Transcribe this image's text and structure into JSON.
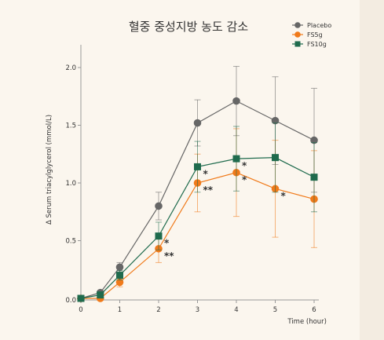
{
  "chart_data": {
    "type": "line",
    "title": "혈중 중성지방 농도 감소",
    "xlabel": "Time (hour)",
    "ylabel": "Δ Serum triacylglycerol (mmol/L)",
    "x": [
      0,
      0.5,
      1,
      2,
      3,
      4,
      5,
      6
    ],
    "x_ticks": [
      "0",
      "1",
      "2",
      "3",
      "4",
      "5",
      "6"
    ],
    "y_ticks": [
      "0.0",
      "0.5",
      "1.0",
      "1.5",
      "2.0"
    ],
    "xlim": [
      0,
      6
    ],
    "ylim": [
      0,
      2.0
    ],
    "legend_position": "top-right",
    "series": [
      {
        "name": "Placebo",
        "color": "#666666",
        "marker": "circle",
        "values": [
          0.0,
          0.05,
          0.27,
          0.8,
          1.52,
          1.71,
          1.54,
          1.37
        ],
        "error": [
          0.02,
          0.02,
          0.04,
          0.12,
          0.2,
          0.3,
          0.38,
          0.45
        ]
      },
      {
        "name": "FS5g",
        "color": "#f07a1a",
        "marker": "circle",
        "values": [
          0.0,
          0.0,
          0.14,
          0.43,
          1.0,
          1.09,
          0.95,
          0.86
        ],
        "error": [
          0.02,
          0.02,
          0.04,
          0.12,
          0.25,
          0.38,
          0.42,
          0.42
        ]
      },
      {
        "name": "FS10g",
        "color": "#1f6b4d",
        "marker": "square",
        "values": [
          0.0,
          0.03,
          0.2,
          0.54,
          1.14,
          1.21,
          1.22,
          1.05
        ],
        "error": [
          0.02,
          0.02,
          0.04,
          0.12,
          0.22,
          0.28,
          0.3,
          0.3
        ]
      }
    ],
    "annotations": [
      {
        "x": 2,
        "y": 0.54,
        "text": "*"
      },
      {
        "x": 2,
        "y": 0.43,
        "text": "**"
      },
      {
        "x": 3,
        "y": 1.14,
        "text": "*"
      },
      {
        "x": 3,
        "y": 1.0,
        "text": "**"
      },
      {
        "x": 4,
        "y": 1.21,
        "text": "*"
      },
      {
        "x": 4,
        "y": 1.09,
        "text": "*"
      },
      {
        "x": 5,
        "y": 0.95,
        "text": "*"
      }
    ]
  }
}
